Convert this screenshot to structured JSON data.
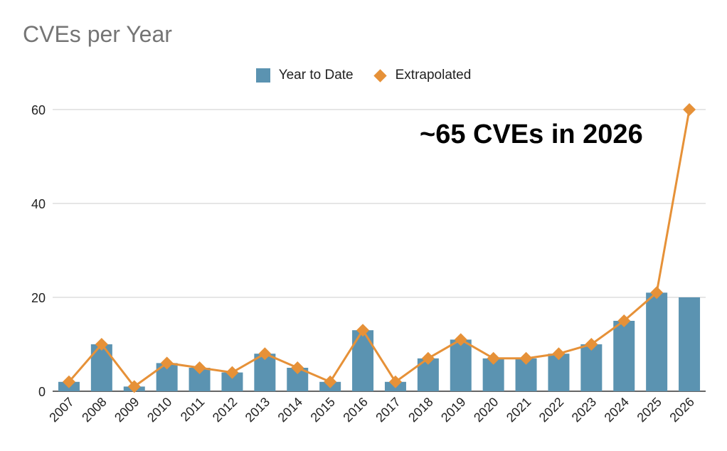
{
  "title": "CVEs per Year",
  "legend": {
    "bar_label": "Year to Date",
    "line_label": "Extrapolated"
  },
  "annotation": "~65 CVEs in 2026",
  "colors": {
    "bar": "#5b93b1",
    "line": "#e69138",
    "grid": "#cccccc",
    "axis": "#333333",
    "title": "#757575"
  },
  "chart_data": {
    "type": "bar",
    "title": "CVEs per Year",
    "categories": [
      "2007",
      "2008",
      "2009",
      "2010",
      "2011",
      "2012",
      "2013",
      "2014",
      "2015",
      "2016",
      "2017",
      "2018",
      "2019",
      "2020",
      "2021",
      "2022",
      "2023",
      "2024",
      "2025",
      "2026"
    ],
    "series": [
      {
        "name": "Year to Date",
        "type": "bar",
        "values": [
          2,
          10,
          1,
          6,
          5,
          4,
          8,
          5,
          2,
          13,
          2,
          7,
          11,
          7,
          7,
          8,
          10,
          15,
          21,
          20
        ]
      },
      {
        "name": "Extrapolated",
        "type": "line",
        "marker": "diamond",
        "values": [
          2,
          10,
          1,
          6,
          5,
          4,
          8,
          5,
          2,
          13,
          2,
          7,
          11,
          7,
          7,
          8,
          10,
          15,
          21,
          60
        ]
      }
    ],
    "yticks": [
      0,
      20,
      40,
      60
    ],
    "ylim": [
      0,
      60
    ],
    "grid": true,
    "legend_position": "top"
  }
}
